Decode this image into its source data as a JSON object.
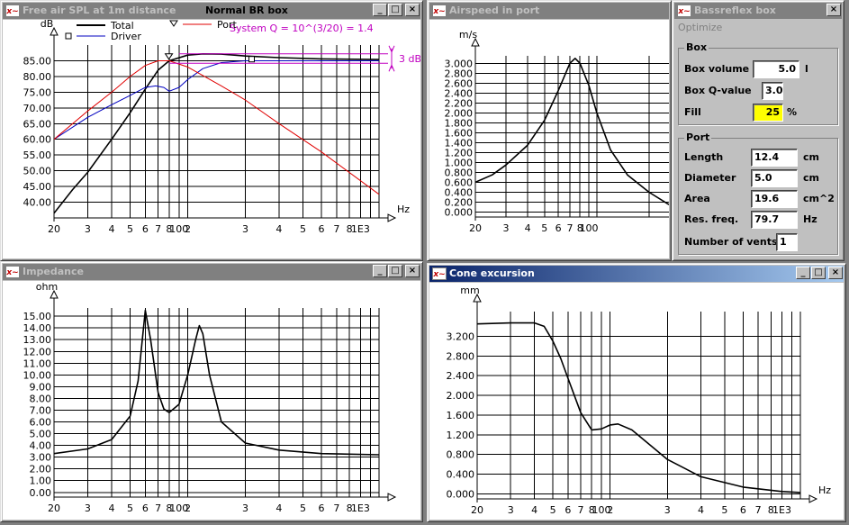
{
  "windows": {
    "spl": {
      "title": "Free air SPL at 1m distance",
      "chart_title": "Normal BR box",
      "system_q_label": "System Q = 10^(3/20) = 1.4",
      "db_marker_label": "3 dB"
    },
    "airspeed": {
      "title": "Airspeed in port"
    },
    "impedance": {
      "title": "Impedance"
    },
    "cone": {
      "title": "Cone excursion"
    },
    "bassreflex": {
      "title": "Bassreflex box",
      "menu": [
        "Optimize"
      ],
      "box_group": {
        "label": "Box",
        "fields": [
          {
            "label": "Box volume",
            "value": "5.0",
            "unit": "l"
          },
          {
            "label": "Box Q-value",
            "value": "3.0",
            "unit": ""
          },
          {
            "label": "Fill",
            "value": "25",
            "unit": "%"
          }
        ]
      },
      "port_group": {
        "label": "Port",
        "fields": [
          {
            "label": "Length",
            "value": "12.4",
            "unit": "cm"
          },
          {
            "label": "Diameter",
            "value": "5.0",
            "unit": "cm"
          },
          {
            "label": "Area",
            "value": "19.6",
            "unit": "cm^2"
          },
          {
            "label": "Res. freq.",
            "value": "79.7",
            "unit": "Hz"
          },
          {
            "label": "Number of vents",
            "value": "1",
            "unit": ""
          }
        ]
      }
    }
  },
  "colors": {
    "title_active": "#0a246a",
    "title_inactive": "#808080",
    "total_curve": "#000000",
    "driver_curve": "#0000c0",
    "port_curve": "#e00000",
    "annotation": "#c000c0",
    "fill_highlight": "#ffff00"
  },
  "chart_data": [
    {
      "type": "line",
      "id": "spl",
      "xscale": "log",
      "xlim": [
        20,
        1000
      ],
      "ylim": [
        35,
        90
      ],
      "xlabel": "Hz",
      "ylabel": "dB",
      "xticks": [
        "20",
        "3",
        "4",
        "5",
        "6",
        "7",
        "8",
        "100",
        "2",
        "3",
        "4",
        "5",
        "6",
        "7",
        "8",
        "1E3"
      ],
      "yticks": [
        "40.00",
        "45.00",
        "50.00",
        "55.00",
        "60.00",
        "65.00",
        "70.00",
        "75.00",
        "80.00",
        "85.00"
      ],
      "series": [
        {
          "name": "Total",
          "color": "#000000",
          "points": [
            [
              20,
              36.5
            ],
            [
              25,
              44
            ],
            [
              30,
              49.5
            ],
            [
              40,
              60
            ],
            [
              50,
              68.5
            ],
            [
              60,
              76
            ],
            [
              70,
              82
            ],
            [
              80,
              85
            ],
            [
              100,
              86.8
            ],
            [
              120,
              87.2
            ],
            [
              150,
              87.1
            ],
            [
              200,
              86.5
            ],
            [
              300,
              86
            ],
            [
              500,
              85.6
            ],
            [
              1000,
              85.4
            ]
          ]
        },
        {
          "name": "Driver",
          "color": "#0000c0",
          "points": [
            [
              20,
              60
            ],
            [
              30,
              67
            ],
            [
              40,
              71
            ],
            [
              50,
              74
            ],
            [
              60,
              76.5
            ],
            [
              68,
              77
            ],
            [
              75,
              76.5
            ],
            [
              80,
              75.3
            ],
            [
              90,
              76.5
            ],
            [
              100,
              79
            ],
            [
              120,
              82.5
            ],
            [
              150,
              84.4
            ],
            [
              200,
              85
            ],
            [
              500,
              85
            ],
            [
              1000,
              85
            ]
          ]
        },
        {
          "name": "Port",
          "color": "#e00000",
          "points": [
            [
              20,
              60
            ],
            [
              30,
              69
            ],
            [
              40,
              75
            ],
            [
              50,
              80
            ],
            [
              60,
              83.5
            ],
            [
              70,
              85
            ],
            [
              80,
              85
            ],
            [
              100,
              83
            ],
            [
              150,
              77
            ],
            [
              200,
              72.5
            ],
            [
              300,
              65
            ],
            [
              500,
              56
            ],
            [
              1000,
              42.5
            ]
          ]
        }
      ]
    },
    {
      "type": "line",
      "id": "airspeed",
      "xscale": "log",
      "xlim": [
        20,
        260
      ],
      "ylim": [
        -0.1,
        3.15
      ],
      "ylabel": "m/s",
      "xticks": [
        "20",
        "3",
        "4",
        "5",
        "6",
        "7",
        "8",
        "100"
      ],
      "yticks": [
        "0.000",
        "0.200",
        "0.400",
        "0.600",
        "0.800",
        "1.000",
        "1.200",
        "1.400",
        "1.600",
        "1.800",
        "2.000",
        "2.200",
        "2.400",
        "2.600",
        "2.800",
        "3.000"
      ],
      "series": [
        {
          "color": "#000000",
          "points": [
            [
              20,
              0.6
            ],
            [
              25,
              0.75
            ],
            [
              30,
              0.95
            ],
            [
              40,
              1.35
            ],
            [
              50,
              1.85
            ],
            [
              60,
              2.45
            ],
            [
              70,
              3.0
            ],
            [
              75,
              3.1
            ],
            [
              80,
              3.0
            ],
            [
              90,
              2.55
            ],
            [
              100,
              2.0
            ],
            [
              120,
              1.25
            ],
            [
              150,
              0.75
            ],
            [
              200,
              0.4
            ],
            [
              260,
              0.15
            ]
          ]
        }
      ]
    },
    {
      "type": "line",
      "id": "impedance",
      "xscale": "log",
      "xlim": [
        20,
        1000
      ],
      "ylim": [
        -0.4,
        15.7
      ],
      "ylabel": "ohm",
      "xticks": [
        "20",
        "3",
        "4",
        "5",
        "6",
        "7",
        "8",
        "100",
        "2",
        "3",
        "4",
        "5",
        "6",
        "7",
        "8",
        "1E3"
      ],
      "yticks": [
        "0.00",
        "1.00",
        "2.00",
        "3.00",
        "4.00",
        "5.00",
        "6.00",
        "7.00",
        "8.00",
        "9.00",
        "10.00",
        "11.00",
        "12.00",
        "13.00",
        "14.00",
        "15.00"
      ],
      "series": [
        {
          "color": "#000000",
          "points": [
            [
              20,
              3.3
            ],
            [
              30,
              3.7
            ],
            [
              40,
              4.5
            ],
            [
              50,
              6.5
            ],
            [
              55,
              9.5
            ],
            [
              60,
              15.5
            ],
            [
              64,
              13
            ],
            [
              70,
              8.5
            ],
            [
              75,
              7.1
            ],
            [
              80,
              6.8
            ],
            [
              90,
              7.5
            ],
            [
              100,
              10
            ],
            [
              110,
              13
            ],
            [
              115,
              14.2
            ],
            [
              120,
              13.5
            ],
            [
              130,
              10
            ],
            [
              150,
              6
            ],
            [
              200,
              4.2
            ],
            [
              300,
              3.6
            ],
            [
              500,
              3.3
            ],
            [
              1000,
              3.2
            ]
          ]
        }
      ]
    },
    {
      "type": "line",
      "id": "cone",
      "xscale": "log",
      "xlim": [
        20,
        1000
      ],
      "ylim": [
        -0.1,
        3.7
      ],
      "xlabel": "Hz",
      "ylabel": "mm",
      "xticks": [
        "20",
        "3",
        "4",
        "5",
        "6",
        "7",
        "8",
        "100",
        "2",
        "3",
        "4",
        "5",
        "6",
        "7",
        "8",
        "1E3"
      ],
      "yticks": [
        "0.000",
        "0.400",
        "0.800",
        "1.200",
        "1.600",
        "2.000",
        "2.400",
        "2.800",
        "3.200"
      ],
      "series": [
        {
          "color": "#000000",
          "points": [
            [
              20,
              3.45
            ],
            [
              30,
              3.47
            ],
            [
              40,
              3.47
            ],
            [
              45,
              3.4
            ],
            [
              50,
              3.1
            ],
            [
              55,
              2.75
            ],
            [
              60,
              2.35
            ],
            [
              70,
              1.65
            ],
            [
              80,
              1.3
            ],
            [
              90,
              1.32
            ],
            [
              100,
              1.4
            ],
            [
              110,
              1.42
            ],
            [
              130,
              1.3
            ],
            [
              150,
              1.1
            ],
            [
              200,
              0.7
            ],
            [
              300,
              0.35
            ],
            [
              500,
              0.14
            ],
            [
              800,
              0.05
            ],
            [
              1000,
              0.03
            ]
          ]
        }
      ]
    }
  ]
}
